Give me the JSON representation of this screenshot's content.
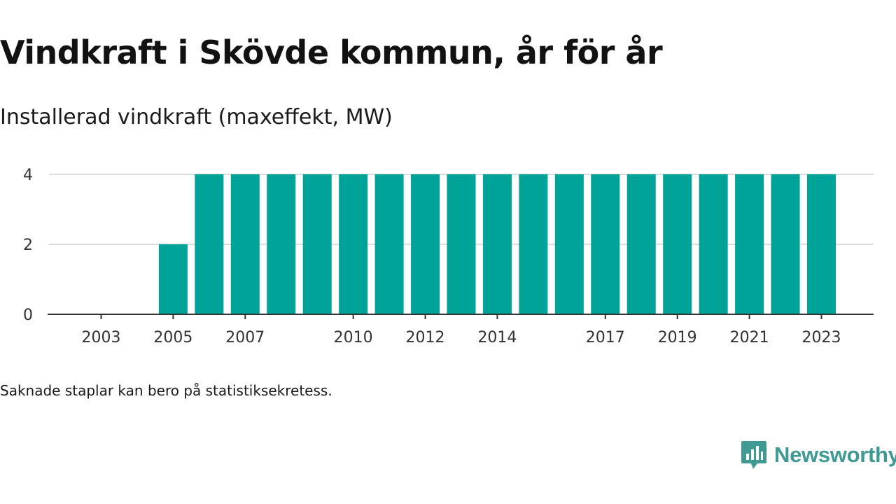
{
  "title": "Vindkraft i Skövde kommun, år för år",
  "subtitle": "Installerad vindkraft (maxeffekt, MW)",
  "note": "Saknade staplar kan bero på statistiksekretess.",
  "brand": {
    "name": "Newsworthy",
    "logo_icon": "bar-chart-speech-bubble-icon",
    "color": "#3f9a93"
  },
  "chart_data": {
    "type": "bar",
    "title": "Vindkraft i Skövde kommun, år för år",
    "subtitle": "Installerad vindkraft (maxeffekt, MW)",
    "ylabel": "",
    "xlabel": "",
    "categories": [
      "2003",
      "2004",
      "2005",
      "2006",
      "2007",
      "2008",
      "2009",
      "2010",
      "2011",
      "2012",
      "2013",
      "2014",
      "2015",
      "2016",
      "2017",
      "2018",
      "2019",
      "2020",
      "2021",
      "2022",
      "2023"
    ],
    "values": [
      0,
      0,
      2,
      4,
      4,
      4,
      4,
      4,
      4,
      4,
      4,
      4,
      4,
      4,
      4,
      4,
      4,
      4,
      4,
      4,
      4
    ],
    "x_tick_labels": [
      "2003",
      "2005",
      "2007",
      "2010",
      "2012",
      "2014",
      "2017",
      "2019",
      "2021",
      "2023"
    ],
    "y_ticks": [
      0,
      2,
      4
    ],
    "ylim": [
      0,
      4
    ],
    "grid": true,
    "bar_color": "#00a398",
    "grid_color": "#dddddd"
  }
}
